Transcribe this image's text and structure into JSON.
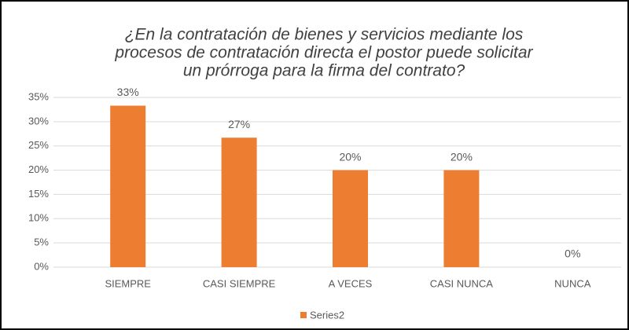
{
  "chart_data": {
    "type": "bar",
    "title": [
      "¿En la contratación de bienes y servicios mediante los",
      "procesos de contratación directa el postor puede solicitar",
      "un prórroga para la firma del contrato?"
    ],
    "categories": [
      "SIEMPRE",
      "CASI SIEMPRE",
      "A VECES",
      "CASI NUNCA",
      "NUNCA"
    ],
    "series": [
      {
        "name": "Series2",
        "color": "#ed7d31",
        "values": [
          33.3,
          26.7,
          20,
          20,
          0
        ],
        "value_labels": [
          "33%",
          "27%",
          "20%",
          "20%",
          "0%"
        ]
      }
    ],
    "ylim": [
      0,
      35
    ],
    "yticks": [
      {
        "value": 0,
        "label": "0%"
      },
      {
        "value": 5,
        "label": "5%"
      },
      {
        "value": 10,
        "label": "10%"
      },
      {
        "value": 15,
        "label": "15%"
      },
      {
        "value": 20,
        "label": "20%"
      },
      {
        "value": 25,
        "label": "25%"
      },
      {
        "value": 30,
        "label": "30%"
      },
      {
        "value": 35,
        "label": "35%"
      }
    ],
    "grid": true,
    "legend": "bottom"
  }
}
